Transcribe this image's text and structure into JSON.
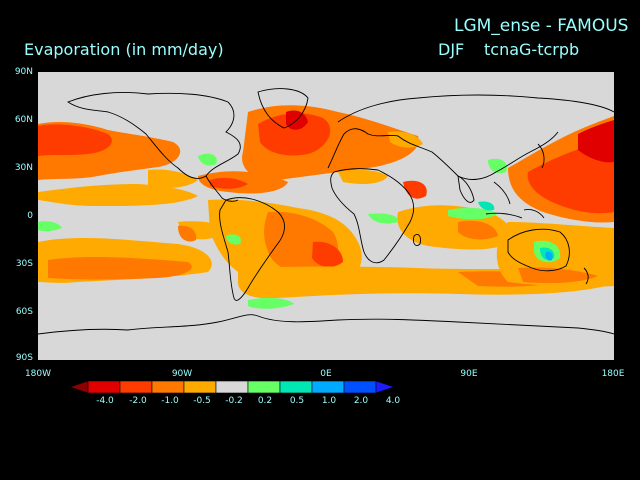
{
  "title_main": "LGM_ense - FAMOUS",
  "title_left": "Evaporation (in mm/day)",
  "season": "DJF",
  "experiment": "tcnaG-tcrpb",
  "lat_labels": [
    "90N",
    "60N",
    "30N",
    "0",
    "30S",
    "60S",
    "90S"
  ],
  "lon_labels": [
    "180W",
    "90W",
    "0E",
    "90E",
    "180E"
  ],
  "colorbar": {
    "labels": [
      "-4.0",
      "-2.0",
      "-1.0",
      "-0.5",
      "-0.2",
      "0.2",
      "0.5",
      "1.0",
      "2.0",
      "4.0"
    ],
    "colors": [
      "#8b0000",
      "#e00000",
      "#ff3c00",
      "#ff7800",
      "#ffaa00",
      "#d8d8d8",
      "#66ff66",
      "#00e6b4",
      "#00aaff",
      "#0050ff",
      "#1c1cff"
    ]
  }
}
